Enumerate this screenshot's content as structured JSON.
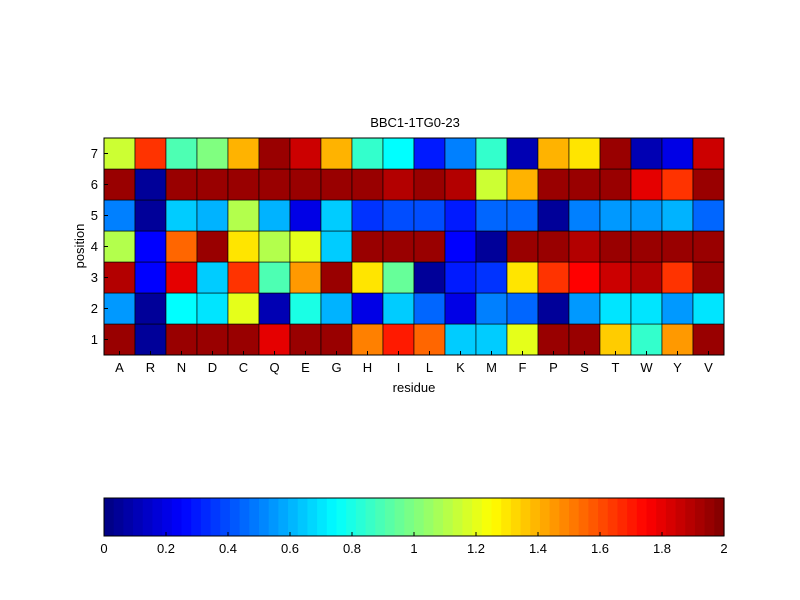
{
  "chart_data": {
    "type": "heatmap",
    "title": "BBC1-1TG0-23",
    "xlabel": "residue",
    "ylabel": "position",
    "x_categories": [
      "A",
      "R",
      "N",
      "D",
      "C",
      "Q",
      "E",
      "G",
      "H",
      "I",
      "L",
      "K",
      "M",
      "F",
      "P",
      "S",
      "T",
      "W",
      "Y",
      "V"
    ],
    "y_categories": [
      "1",
      "2",
      "3",
      "4",
      "5",
      "6",
      "7"
    ],
    "values": [
      [
        1.95,
        0.05,
        1.95,
        1.95,
        1.95,
        1.8,
        1.95,
        1.95,
        1.5,
        1.7,
        1.55,
        0.65,
        0.65,
        1.2,
        1.95,
        1.95,
        1.35,
        0.85,
        1.45,
        1.95
      ],
      [
        0.55,
        0.05,
        0.75,
        0.7,
        1.2,
        0.1,
        0.8,
        0.6,
        0.2,
        0.65,
        0.45,
        0.2,
        0.5,
        0.45,
        0.05,
        0.55,
        0.7,
        0.7,
        0.55,
        0.7
      ],
      [
        1.9,
        0.25,
        1.8,
        0.65,
        1.65,
        0.9,
        1.45,
        1.95,
        1.3,
        0.95,
        0.05,
        0.3,
        0.35,
        1.3,
        1.65,
        1.75,
        1.85,
        1.9,
        1.65,
        1.95
      ],
      [
        1.1,
        0.25,
        1.55,
        1.95,
        1.3,
        1.1,
        1.2,
        0.65,
        1.95,
        1.95,
        1.95,
        0.25,
        0.05,
        1.95,
        1.95,
        1.9,
        1.95,
        1.95,
        1.95,
        1.95
      ],
      [
        0.5,
        0.05,
        0.65,
        0.6,
        1.1,
        0.6,
        0.2,
        0.65,
        0.35,
        0.4,
        0.4,
        0.3,
        0.45,
        0.45,
        0.05,
        0.5,
        0.55,
        0.55,
        0.6,
        0.45
      ],
      [
        1.95,
        0.05,
        1.95,
        1.95,
        1.95,
        1.95,
        1.95,
        1.95,
        1.95,
        1.9,
        1.95,
        1.9,
        1.15,
        1.4,
        1.95,
        1.95,
        1.95,
        1.8,
        1.65,
        1.95
      ],
      [
        1.15,
        1.65,
        0.9,
        1.0,
        1.4,
        1.95,
        1.85,
        1.4,
        0.85,
        0.75,
        0.3,
        0.5,
        0.85,
        0.1,
        1.4,
        1.3,
        1.95,
        0.1,
        0.2,
        1.85
      ]
    ],
    "colorbar": {
      "min": 0,
      "max": 2,
      "ticks": [
        "0",
        "0.2",
        "0.4",
        "0.6",
        "0.8",
        "1",
        "1.2",
        "1.4",
        "1.6",
        "1.8",
        "2"
      ],
      "colormap": "jet",
      "levels": 64
    },
    "grid": true
  }
}
